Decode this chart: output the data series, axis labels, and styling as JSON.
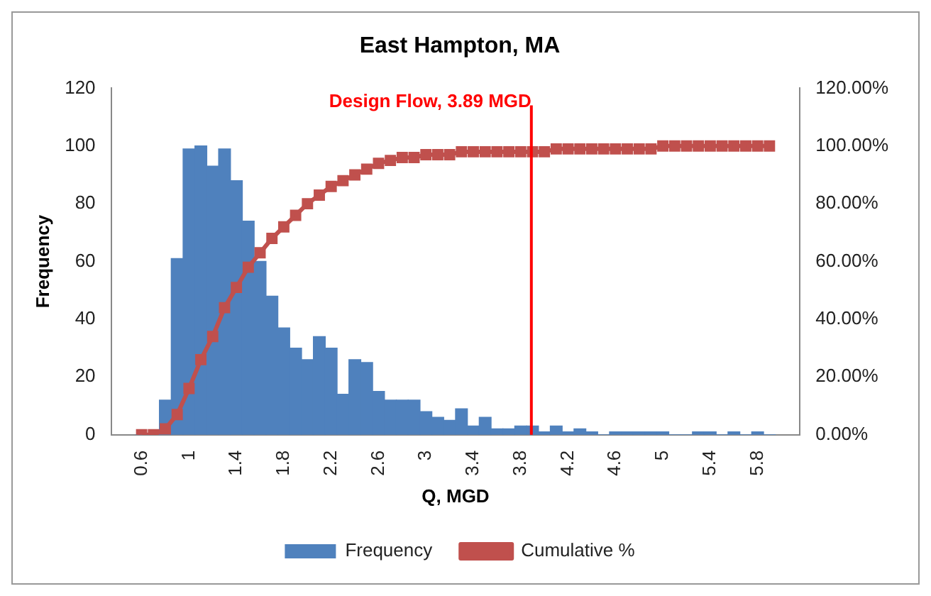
{
  "chart_data": {
    "type": "bar",
    "title": "East Hampton, MA",
    "xlabel": "Q, MGD",
    "ylabel": "Frequency",
    "x": [
      0.6,
      0.7,
      0.8,
      0.9,
      1.0,
      1.1,
      1.2,
      1.3,
      1.4,
      1.5,
      1.6,
      1.7,
      1.8,
      1.9,
      2.0,
      2.1,
      2.2,
      2.3,
      2.4,
      2.5,
      2.6,
      2.7,
      2.8,
      2.9,
      3.0,
      3.1,
      3.2,
      3.3,
      3.4,
      3.5,
      3.6,
      3.7,
      3.8,
      3.9,
      4.0,
      4.1,
      4.2,
      4.3,
      4.4,
      4.5,
      4.6,
      4.7,
      4.8,
      4.9,
      5.0,
      5.1,
      5.2,
      5.3,
      5.4,
      5.5,
      5.6,
      5.7,
      5.8,
      5.9
    ],
    "series": [
      {
        "name": "Frequency",
        "color": "#4f81bd",
        "values": [
          0,
          0,
          12,
          61,
          99,
          100,
          93,
          99,
          88,
          74,
          60,
          48,
          37,
          30,
          26,
          34,
          30,
          14,
          26,
          25,
          15,
          12,
          12,
          12,
          8,
          6,
          5,
          9,
          3,
          6,
          2,
          2,
          3,
          3,
          1,
          3,
          1,
          2,
          1,
          0,
          1,
          1,
          1,
          1,
          1,
          0,
          0,
          1,
          1,
          0,
          1,
          0,
          1,
          0
        ]
      },
      {
        "name": "Cumulative %",
        "type": "line",
        "axis": "y2",
        "color": "#c0504d",
        "marker": "square",
        "values": [
          0,
          0,
          2,
          7,
          16,
          26,
          34,
          44,
          51,
          58,
          63,
          68,
          72,
          76,
          80,
          83,
          86,
          88,
          90,
          92,
          94,
          95,
          96,
          96,
          97,
          97,
          97,
          98,
          98,
          98,
          98,
          98,
          98,
          98,
          98,
          99,
          99,
          99,
          99,
          99,
          99,
          99,
          99,
          99,
          100,
          100,
          100,
          100,
          100,
          100,
          100,
          100,
          100,
          100
        ]
      }
    ],
    "xlim": [
      0.55,
      5.95
    ],
    "xticks": [
      0.6,
      1,
      1.4,
      1.8,
      2.2,
      2.6,
      3,
      3.4,
      3.8,
      4.2,
      4.6,
      5,
      5.4,
      5.8
    ],
    "ylim": [
      0,
      120
    ],
    "yticks": [
      0,
      20,
      40,
      60,
      80,
      100,
      120
    ],
    "y2lim": [
      0,
      120
    ],
    "y2ticks": [
      {
        "value": 0,
        "label": "0.00%"
      },
      {
        "value": 20,
        "label": "20.00%"
      },
      {
        "value": 40,
        "label": "40.00%"
      },
      {
        "value": 60,
        "label": "60.00%"
      },
      {
        "value": 80,
        "label": "80.00%"
      },
      {
        "value": 100,
        "label": "100.00%"
      },
      {
        "value": 120,
        "label": "120.00%"
      }
    ],
    "ref_lines": [
      {
        "axis": "x",
        "value": 3.89,
        "label": "Design Flow, 3.89 MGD",
        "color": "#ff0000"
      }
    ],
    "grid": false,
    "legend": "bottom"
  }
}
